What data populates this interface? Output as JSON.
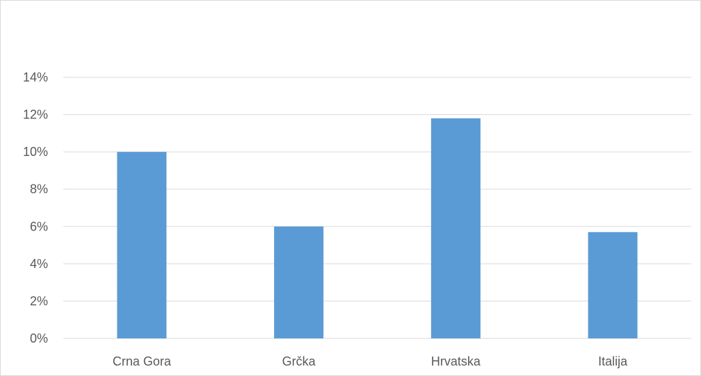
{
  "chart_data": {
    "type": "bar",
    "categories": [
      "Crna Gora",
      "Grčka",
      "Hrvatska",
      "Italija"
    ],
    "values": [
      10.0,
      6.0,
      11.8,
      5.7
    ],
    "value_format": "percent",
    "ylim": [
      0,
      14
    ],
    "yticks": [
      0,
      2,
      4,
      6,
      8,
      10,
      12,
      14
    ],
    "ytick_labels": [
      "0%",
      "2%",
      "4%",
      "6%",
      "8%",
      "10%",
      "12%",
      "14%"
    ],
    "grid": true,
    "legend": "none",
    "colors": {
      "bar": "#5b9bd5",
      "grid": "#d9d9d9",
      "text": "#595959"
    }
  }
}
